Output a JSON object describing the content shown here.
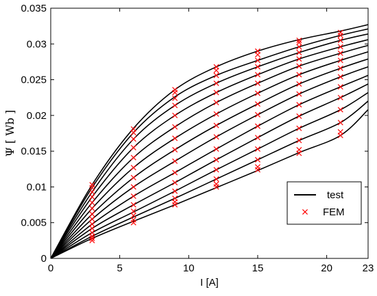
{
  "chart_data": {
    "type": "line",
    "title": "",
    "xlabel": "I [A]",
    "ylabel": "Ψ [ Wb ]",
    "xlim": [
      0,
      23
    ],
    "ylim": [
      0,
      0.035
    ],
    "x_ticks": [
      0,
      5,
      10,
      15,
      20,
      23
    ],
    "y_ticks": [
      0,
      0.005,
      0.01,
      0.015,
      0.02,
      0.025,
      0.03,
      0.035
    ],
    "x_tick_labels": [
      "0",
      "5",
      "10",
      "15",
      "20",
      "23"
    ],
    "y_tick_labels": [
      "0",
      "0.005",
      "0.01",
      "0.015",
      "0.02",
      "0.025",
      "0.03",
      "0.035"
    ],
    "grid": false,
    "legend": {
      "position": "bottom-right",
      "entries": [
        {
          "label": "test",
          "style": "line",
          "color": "#000000"
        },
        {
          "label": "FEM",
          "style": "x-marker",
          "color": "#ff0000"
        }
      ]
    },
    "series": [
      {
        "values": [
          [
            0,
            0
          ],
          [
            3,
            0.0028
          ],
          [
            6,
            0.0052
          ],
          [
            9,
            0.0075
          ],
          [
            12,
            0.0099
          ],
          [
            15,
            0.0123
          ],
          [
            18,
            0.0148
          ],
          [
            21,
            0.0172
          ],
          [
            23,
            0.0208
          ]
        ]
      },
      {
        "values": [
          [
            0,
            0
          ],
          [
            3,
            0.0031
          ],
          [
            6,
            0.0058
          ],
          [
            9,
            0.0084
          ],
          [
            12,
            0.0111
          ],
          [
            15,
            0.0138
          ],
          [
            18,
            0.0165
          ],
          [
            21,
            0.019
          ],
          [
            23,
            0.022
          ]
        ]
      },
      {
        "values": [
          [
            0,
            0
          ],
          [
            3,
            0.0036
          ],
          [
            6,
            0.0065
          ],
          [
            9,
            0.0094
          ],
          [
            12,
            0.0124
          ],
          [
            15,
            0.0153
          ],
          [
            18,
            0.0182
          ],
          [
            21,
            0.0208
          ],
          [
            23,
            0.0232
          ]
        ]
      },
      {
        "values": [
          [
            0,
            0
          ],
          [
            3,
            0.0042
          ],
          [
            6,
            0.0075
          ],
          [
            9,
            0.0106
          ],
          [
            12,
            0.0138
          ],
          [
            15,
            0.0169
          ],
          [
            18,
            0.0199
          ],
          [
            21,
            0.0225
          ],
          [
            23,
            0.0244
          ]
        ]
      },
      {
        "values": [
          [
            0,
            0
          ],
          [
            3,
            0.0048
          ],
          [
            6,
            0.0087
          ],
          [
            9,
            0.012
          ],
          [
            12,
            0.0153
          ],
          [
            15,
            0.0185
          ],
          [
            18,
            0.0215
          ],
          [
            21,
            0.024
          ],
          [
            23,
            0.0256
          ]
        ]
      },
      {
        "values": [
          [
            0,
            0
          ],
          [
            3,
            0.0055
          ],
          [
            6,
            0.01
          ],
          [
            9,
            0.0136
          ],
          [
            12,
            0.017
          ],
          [
            15,
            0.0201
          ],
          [
            18,
            0.023
          ],
          [
            21,
            0.0254
          ],
          [
            23,
            0.0268
          ]
        ]
      },
      {
        "values": [
          [
            0,
            0
          ],
          [
            3,
            0.0062
          ],
          [
            6,
            0.0113
          ],
          [
            9,
            0.0152
          ],
          [
            12,
            0.0186
          ],
          [
            15,
            0.0216
          ],
          [
            18,
            0.0244
          ],
          [
            21,
            0.0266
          ],
          [
            23,
            0.0279
          ]
        ]
      },
      {
        "values": [
          [
            0,
            0
          ],
          [
            3,
            0.007
          ],
          [
            6,
            0.0127
          ],
          [
            9,
            0.0168
          ],
          [
            12,
            0.0202
          ],
          [
            15,
            0.0231
          ],
          [
            18,
            0.0257
          ],
          [
            21,
            0.0277
          ],
          [
            23,
            0.0289
          ]
        ]
      },
      {
        "values": [
          [
            0,
            0
          ],
          [
            3,
            0.0078
          ],
          [
            6,
            0.0141
          ],
          [
            9,
            0.0184
          ],
          [
            12,
            0.0218
          ],
          [
            15,
            0.0245
          ],
          [
            18,
            0.0269
          ],
          [
            21,
            0.0287
          ],
          [
            23,
            0.0298
          ]
        ]
      },
      {
        "values": [
          [
            0,
            0
          ],
          [
            3,
            0.0086
          ],
          [
            6,
            0.0155
          ],
          [
            9,
            0.02
          ],
          [
            12,
            0.0232
          ],
          [
            15,
            0.0257
          ],
          [
            18,
            0.0279
          ],
          [
            21,
            0.0296
          ],
          [
            23,
            0.0306
          ]
        ]
      },
      {
        "values": [
          [
            0,
            0
          ],
          [
            3,
            0.0093
          ],
          [
            6,
            0.0167
          ],
          [
            9,
            0.0214
          ],
          [
            12,
            0.0245
          ],
          [
            15,
            0.0268
          ],
          [
            18,
            0.0288
          ],
          [
            21,
            0.0305
          ],
          [
            23,
            0.0314
          ]
        ]
      },
      {
        "values": [
          [
            0,
            0
          ],
          [
            3,
            0.0099
          ],
          [
            6,
            0.0176
          ],
          [
            9,
            0.0226
          ],
          [
            12,
            0.0256
          ],
          [
            15,
            0.0277
          ],
          [
            18,
            0.0296
          ],
          [
            21,
            0.0312
          ],
          [
            23,
            0.0321
          ]
        ]
      },
      {
        "values": [
          [
            0,
            0
          ],
          [
            3,
            0.0103
          ],
          [
            6,
            0.0182
          ],
          [
            9,
            0.0236
          ],
          [
            12,
            0.0268
          ],
          [
            15,
            0.029
          ],
          [
            18,
            0.0306
          ],
          [
            21,
            0.0318
          ],
          [
            23,
            0.0327
          ]
        ]
      }
    ],
    "fem_points": [
      {
        "x": 3,
        "y": [
          0.0025,
          0.0028,
          0.0031,
          0.0036,
          0.0042,
          0.0048,
          0.0055,
          0.0062,
          0.007,
          0.0078,
          0.0086,
          0.0093,
          0.0099,
          0.0103
        ]
      },
      {
        "x": 6,
        "y": [
          0.005,
          0.0054,
          0.006,
          0.0066,
          0.0075,
          0.0087,
          0.01,
          0.0113,
          0.0127,
          0.0141,
          0.0155,
          0.0167,
          0.0176,
          0.0181
        ]
      },
      {
        "x": 9,
        "y": [
          0.0075,
          0.0079,
          0.0084,
          0.0094,
          0.0106,
          0.012,
          0.0136,
          0.0152,
          0.0168,
          0.0184,
          0.02,
          0.0214,
          0.0224,
          0.0232,
          0.0236
        ]
      },
      {
        "x": 12,
        "y": [
          0.01,
          0.0104,
          0.0111,
          0.0124,
          0.0138,
          0.0153,
          0.017,
          0.0186,
          0.0202,
          0.0218,
          0.0232,
          0.0245,
          0.0256,
          0.0263,
          0.0268
        ]
      },
      {
        "x": 15,
        "y": [
          0.0124,
          0.0128,
          0.0138,
          0.0153,
          0.0169,
          0.0185,
          0.0201,
          0.0216,
          0.0231,
          0.0245,
          0.0257,
          0.0268,
          0.0277,
          0.0285,
          0.029
        ]
      },
      {
        "x": 18,
        "y": [
          0.0147,
          0.0152,
          0.0165,
          0.0182,
          0.0199,
          0.0215,
          0.023,
          0.0244,
          0.0257,
          0.0269,
          0.0279,
          0.0288,
          0.0296,
          0.0302,
          0.0305
        ]
      },
      {
        "x": 21,
        "y": [
          0.0172,
          0.0177,
          0.019,
          0.0208,
          0.0225,
          0.024,
          0.0254,
          0.0266,
          0.0277,
          0.0287,
          0.0296,
          0.0305,
          0.0312,
          0.0316
        ]
      }
    ]
  }
}
